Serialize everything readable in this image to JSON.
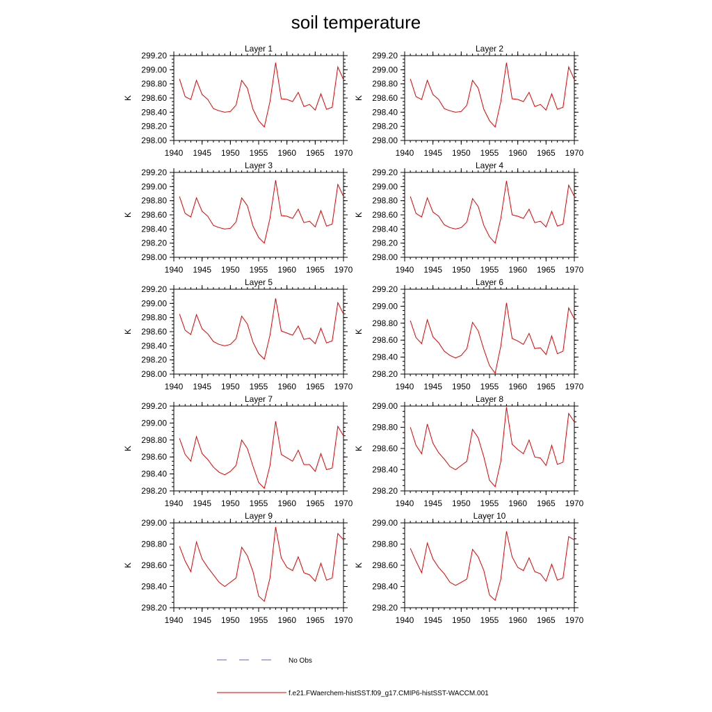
{
  "page_title": "soil temperature",
  "legend": {
    "no_obs_label": "No Obs",
    "model_label": "f.e21.FWaerchem-histSST.f09_g17.CMIP6-histSST-WACCM.001",
    "no_obs_color": "#6060c0",
    "model_color": "#e00000"
  },
  "chart_data": [
    {
      "type": "line",
      "title": "Layer 1",
      "ylabel": "K",
      "xlim": [
        1940,
        1970
      ],
      "ylim": [
        298.0,
        299.2
      ],
      "yticks": [
        "298.00",
        "298.20",
        "298.40",
        "298.60",
        "298.80",
        "299.00",
        "299.20"
      ],
      "xticks": [
        "1940",
        "1945",
        "1950",
        "1955",
        "1960",
        "1965",
        "1970"
      ],
      "x": [
        1941,
        1942,
        1943,
        1944,
        1945,
        1946,
        1947,
        1948,
        1949,
        1950,
        1951,
        1952,
        1953,
        1954,
        1955,
        1956,
        1957,
        1958,
        1959,
        1960,
        1961,
        1962,
        1963,
        1964,
        1965,
        1966,
        1967,
        1968,
        1969,
        1970
      ],
      "series": [
        {
          "values": [
            298.87,
            298.62,
            298.58,
            298.85,
            298.65,
            298.58,
            298.45,
            298.42,
            298.4,
            298.41,
            298.5,
            298.85,
            298.74,
            298.44,
            298.28,
            298.19,
            298.55,
            299.1,
            298.59,
            298.58,
            298.55,
            298.68,
            298.48,
            298.51,
            298.43,
            298.66,
            298.44,
            298.47,
            299.04,
            298.86
          ]
        }
      ]
    },
    {
      "type": "line",
      "title": "Layer 2",
      "ylabel": "K",
      "xlim": [
        1940,
        1970
      ],
      "ylim": [
        298.0,
        299.2
      ],
      "yticks": [
        "298.00",
        "298.20",
        "298.40",
        "298.60",
        "298.80",
        "299.00",
        "299.20"
      ],
      "xticks": [
        "1940",
        "1945",
        "1950",
        "1955",
        "1960",
        "1965",
        "1970"
      ],
      "x": [
        1941,
        1942,
        1943,
        1944,
        1945,
        1946,
        1947,
        1948,
        1949,
        1950,
        1951,
        1952,
        1953,
        1954,
        1955,
        1956,
        1957,
        1958,
        1959,
        1960,
        1961,
        1962,
        1963,
        1964,
        1965,
        1966,
        1967,
        1968,
        1969,
        1970
      ],
      "series": [
        {
          "values": [
            298.87,
            298.62,
            298.58,
            298.85,
            298.65,
            298.58,
            298.45,
            298.42,
            298.4,
            298.41,
            298.5,
            298.85,
            298.74,
            298.44,
            298.28,
            298.19,
            298.55,
            299.1,
            298.59,
            298.58,
            298.55,
            298.68,
            298.48,
            298.51,
            298.43,
            298.66,
            298.44,
            298.47,
            299.04,
            298.86
          ]
        }
      ]
    },
    {
      "type": "line",
      "title": "Layer 3",
      "ylabel": "K",
      "xlim": [
        1940,
        1970
      ],
      "ylim": [
        298.0,
        299.2
      ],
      "yticks": [
        "298.00",
        "298.20",
        "298.40",
        "298.60",
        "298.80",
        "299.00",
        "299.20"
      ],
      "xticks": [
        "1940",
        "1945",
        "1950",
        "1955",
        "1960",
        "1965",
        "1970"
      ],
      "x": [
        1941,
        1942,
        1943,
        1944,
        1945,
        1946,
        1947,
        1948,
        1949,
        1950,
        1951,
        1952,
        1953,
        1954,
        1955,
        1956,
        1957,
        1958,
        1959,
        1960,
        1961,
        1962,
        1963,
        1964,
        1965,
        1966,
        1967,
        1968,
        1969,
        1970
      ],
      "series": [
        {
          "values": [
            298.86,
            298.62,
            298.57,
            298.84,
            298.65,
            298.58,
            298.45,
            298.42,
            298.4,
            298.41,
            298.5,
            298.84,
            298.73,
            298.44,
            298.28,
            298.2,
            298.55,
            299.09,
            298.59,
            298.58,
            298.55,
            298.68,
            298.49,
            298.51,
            298.43,
            298.66,
            298.44,
            298.47,
            299.03,
            298.86
          ]
        }
      ]
    },
    {
      "type": "line",
      "title": "Layer 4",
      "ylabel": "K",
      "xlim": [
        1940,
        1970
      ],
      "ylim": [
        298.0,
        299.2
      ],
      "yticks": [
        "298.00",
        "298.20",
        "298.40",
        "298.60",
        "298.80",
        "299.00",
        "299.20"
      ],
      "xticks": [
        "1940",
        "1945",
        "1950",
        "1955",
        "1960",
        "1965",
        "1970"
      ],
      "x": [
        1941,
        1942,
        1943,
        1944,
        1945,
        1946,
        1947,
        1948,
        1949,
        1950,
        1951,
        1952,
        1953,
        1954,
        1955,
        1956,
        1957,
        1958,
        1959,
        1960,
        1961,
        1962,
        1963,
        1964,
        1965,
        1966,
        1967,
        1968,
        1969,
        1970
      ],
      "series": [
        {
          "values": [
            298.86,
            298.62,
            298.57,
            298.84,
            298.64,
            298.58,
            298.46,
            298.42,
            298.4,
            298.42,
            298.5,
            298.83,
            298.72,
            298.45,
            298.29,
            298.2,
            298.55,
            299.08,
            298.6,
            298.58,
            298.55,
            298.68,
            298.49,
            298.51,
            298.43,
            298.65,
            298.44,
            298.47,
            299.02,
            298.86
          ]
        }
      ]
    },
    {
      "type": "line",
      "title": "Layer 5",
      "ylabel": "K",
      "xlim": [
        1940,
        1970
      ],
      "ylim": [
        298.0,
        299.2
      ],
      "yticks": [
        "298.00",
        "298.20",
        "298.40",
        "298.60",
        "298.80",
        "299.00",
        "299.20"
      ],
      "xticks": [
        "1940",
        "1945",
        "1950",
        "1955",
        "1960",
        "1965",
        "1970"
      ],
      "x": [
        1941,
        1942,
        1943,
        1944,
        1945,
        1946,
        1947,
        1948,
        1949,
        1950,
        1951,
        1952,
        1953,
        1954,
        1955,
        1956,
        1957,
        1958,
        1959,
        1960,
        1961,
        1962,
        1963,
        1964,
        1965,
        1966,
        1967,
        1968,
        1969,
        1970
      ],
      "series": [
        {
          "values": [
            298.85,
            298.62,
            298.56,
            298.84,
            298.64,
            298.57,
            298.46,
            298.42,
            298.4,
            298.42,
            298.5,
            298.82,
            298.71,
            298.45,
            298.29,
            298.21,
            298.55,
            299.07,
            298.61,
            298.58,
            298.55,
            298.68,
            298.49,
            298.51,
            298.43,
            298.65,
            298.44,
            298.47,
            299.01,
            298.85
          ]
        }
      ]
    },
    {
      "type": "line",
      "title": "Layer 6",
      "ylabel": "K",
      "xlim": [
        1940,
        1970
      ],
      "ylim": [
        298.2,
        299.2
      ],
      "yticks": [
        "298.20",
        "298.40",
        "298.60",
        "298.80",
        "299.00",
        "299.20"
      ],
      "xticks": [
        "1940",
        "1945",
        "1950",
        "1955",
        "1960",
        "1965",
        "1970"
      ],
      "x": [
        1941,
        1942,
        1943,
        1944,
        1945,
        1946,
        1947,
        1948,
        1949,
        1950,
        1951,
        1952,
        1953,
        1954,
        1955,
        1956,
        1957,
        1958,
        1959,
        1960,
        1961,
        1962,
        1963,
        1964,
        1965,
        1966,
        1967,
        1968,
        1969,
        1970
      ],
      "series": [
        {
          "values": [
            298.83,
            298.63,
            298.56,
            298.84,
            298.64,
            298.57,
            298.47,
            298.42,
            298.39,
            298.42,
            298.5,
            298.81,
            298.71,
            298.49,
            298.3,
            298.21,
            298.53,
            299.04,
            298.62,
            298.59,
            298.55,
            298.68,
            298.5,
            298.51,
            298.43,
            298.65,
            298.44,
            298.47,
            298.98,
            298.85
          ]
        }
      ]
    },
    {
      "type": "line",
      "title": "Layer 7",
      "ylabel": "K",
      "xlim": [
        1940,
        1970
      ],
      "ylim": [
        298.2,
        299.2
      ],
      "yticks": [
        "298.20",
        "298.40",
        "298.60",
        "298.80",
        "299.00",
        "299.20"
      ],
      "xticks": [
        "1940",
        "1945",
        "1950",
        "1955",
        "1960",
        "1965",
        "1970"
      ],
      "x": [
        1941,
        1942,
        1943,
        1944,
        1945,
        1946,
        1947,
        1948,
        1949,
        1950,
        1951,
        1952,
        1953,
        1954,
        1955,
        1956,
        1957,
        1958,
        1959,
        1960,
        1961,
        1962,
        1963,
        1964,
        1965,
        1966,
        1967,
        1968,
        1969,
        1970
      ],
      "series": [
        {
          "values": [
            298.82,
            298.63,
            298.55,
            298.84,
            298.64,
            298.57,
            298.48,
            298.42,
            298.39,
            298.43,
            298.5,
            298.8,
            298.7,
            298.49,
            298.3,
            298.23,
            298.5,
            299.02,
            298.63,
            298.59,
            298.55,
            298.68,
            298.51,
            298.51,
            298.43,
            298.64,
            298.45,
            298.47,
            298.96,
            298.85
          ]
        }
      ]
    },
    {
      "type": "line",
      "title": "Layer 8",
      "ylabel": "K",
      "xlim": [
        1940,
        1970
      ],
      "ylim": [
        298.2,
        299.0
      ],
      "yticks": [
        "298.20",
        "298.40",
        "298.60",
        "298.80",
        "299.00"
      ],
      "xticks": [
        "1940",
        "1945",
        "1950",
        "1955",
        "1960",
        "1965",
        "1970"
      ],
      "x": [
        1941,
        1942,
        1943,
        1944,
        1945,
        1946,
        1947,
        1948,
        1949,
        1950,
        1951,
        1952,
        1953,
        1954,
        1955,
        1956,
        1957,
        1958,
        1959,
        1960,
        1961,
        1962,
        1963,
        1964,
        1965,
        1966,
        1967,
        1968,
        1969,
        1970
      ],
      "series": [
        {
          "values": [
            298.8,
            298.63,
            298.55,
            298.83,
            298.65,
            298.56,
            298.5,
            298.43,
            298.4,
            298.44,
            298.48,
            298.78,
            298.7,
            298.52,
            298.3,
            298.24,
            298.48,
            298.99,
            298.64,
            298.59,
            298.55,
            298.68,
            298.52,
            298.51,
            298.44,
            298.63,
            298.45,
            298.47,
            298.93,
            298.85
          ]
        }
      ]
    },
    {
      "type": "line",
      "title": "Layer 9",
      "ylabel": "K",
      "xlim": [
        1940,
        1970
      ],
      "ylim": [
        298.2,
        299.0
      ],
      "yticks": [
        "298.20",
        "298.40",
        "298.60",
        "298.80",
        "299.00"
      ],
      "xticks": [
        "1940",
        "1945",
        "1950",
        "1955",
        "1960",
        "1965",
        "1970"
      ],
      "x": [
        1941,
        1942,
        1943,
        1944,
        1945,
        1946,
        1947,
        1948,
        1949,
        1950,
        1951,
        1952,
        1953,
        1954,
        1955,
        1956,
        1957,
        1958,
        1959,
        1960,
        1961,
        1962,
        1963,
        1964,
        1965,
        1966,
        1967,
        1968,
        1969,
        1970
      ],
      "series": [
        {
          "values": [
            298.78,
            298.64,
            298.54,
            298.82,
            298.66,
            298.58,
            298.51,
            298.44,
            298.4,
            298.44,
            298.48,
            298.77,
            298.69,
            298.54,
            298.31,
            298.26,
            298.48,
            298.96,
            298.67,
            298.58,
            298.55,
            298.68,
            298.53,
            298.51,
            298.45,
            298.62,
            298.46,
            298.48,
            298.9,
            298.84
          ]
        }
      ]
    },
    {
      "type": "line",
      "title": "Layer 10",
      "ylabel": "K",
      "xlim": [
        1940,
        1970
      ],
      "ylim": [
        298.2,
        299.0
      ],
      "yticks": [
        "298.20",
        "298.40",
        "298.60",
        "298.80",
        "299.00"
      ],
      "xticks": [
        "1940",
        "1945",
        "1950",
        "1955",
        "1960",
        "1965",
        "1970"
      ],
      "x": [
        1941,
        1942,
        1943,
        1944,
        1945,
        1946,
        1947,
        1948,
        1949,
        1950,
        1951,
        1952,
        1953,
        1954,
        1955,
        1956,
        1957,
        1958,
        1959,
        1960,
        1961,
        1962,
        1963,
        1964,
        1965,
        1966,
        1967,
        1968,
        1969,
        1970
      ],
      "series": [
        {
          "values": [
            298.76,
            298.64,
            298.53,
            298.81,
            298.66,
            298.58,
            298.52,
            298.44,
            298.41,
            298.44,
            298.47,
            298.75,
            298.68,
            298.55,
            298.32,
            298.27,
            298.47,
            298.92,
            298.68,
            298.58,
            298.55,
            298.67,
            298.54,
            298.52,
            298.45,
            298.61,
            298.46,
            298.48,
            298.87,
            298.84
          ]
        }
      ]
    }
  ]
}
